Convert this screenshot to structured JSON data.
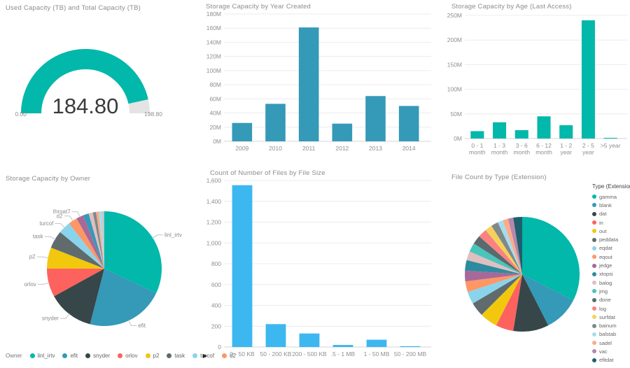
{
  "glyphs": {
    "legend_overflow_arrow": "▶"
  },
  "chart_data": [
    {
      "id": "used-capacity-gauge",
      "type": "gauge",
      "title": "Used Capacity (TB) and Total Capacity (TB)",
      "value": 184.8,
      "min": 0,
      "max": 198.8,
      "value_label": "184.80",
      "min_label": "0.00",
      "max_label": "198.80",
      "fill_color": "#01B8AA",
      "track_color": "#E4E4E4"
    },
    {
      "id": "storage-by-year-created",
      "type": "bar",
      "title": "Storage Capacity by Year Created",
      "categories": [
        "2009",
        "2010",
        "2011",
        "2012",
        "2013",
        "2014"
      ],
      "values": [
        26,
        53,
        161,
        25,
        64,
        50
      ],
      "value_unit": "M",
      "ylim": [
        0,
        180
      ],
      "ytick_labels": [
        "0M",
        "20M",
        "40M",
        "60M",
        "80M",
        "100M",
        "120M",
        "140M",
        "160M",
        "180M"
      ],
      "bar_color": "#3599B8",
      "grid": true
    },
    {
      "id": "storage-by-age-last-access",
      "type": "bar",
      "title": "Storage Capacity by Age (Last Access)",
      "categories": [
        "0 - 1 month",
        "1 - 3 month",
        "3 - 6 month",
        "6 - 12 month",
        "1 - 2 year",
        "2 - 5 year",
        ">5 year"
      ],
      "xtick_lines": [
        [
          "0 - 1",
          "month"
        ],
        [
          "1 - 3",
          "month"
        ],
        [
          "3 - 6",
          "month"
        ],
        [
          "6 - 12",
          "month"
        ],
        [
          "1 - 2",
          "year"
        ],
        [
          "2 - 5",
          "year"
        ],
        [
          ">5 year"
        ]
      ],
      "values": [
        15,
        33,
        17,
        45,
        27,
        240,
        1
      ],
      "value_unit": "M",
      "ylim": [
        0,
        250
      ],
      "ytick_labels": [
        "0M",
        "50M",
        "100M",
        "150M",
        "200M",
        "250M"
      ],
      "bar_color": "#01B8AA",
      "grid": true
    },
    {
      "id": "storage-by-owner",
      "type": "pie",
      "title": "Storage Capacity by Owner",
      "legend_title": "Owner",
      "legend_position": "bottom",
      "show_labels": true,
      "slices": [
        {
          "label": "linl_irtv",
          "value": 32,
          "color": "#01B8AA",
          "in_legend": true
        },
        {
          "label": "efit",
          "value": 22,
          "color": "#3599B8",
          "in_legend": true
        },
        {
          "label": "snyder",
          "value": 13,
          "color": "#374649",
          "in_legend": true
        },
        {
          "label": "orlov",
          "value": 8,
          "color": "#FD625E",
          "in_legend": true
        },
        {
          "label": "p2",
          "value": 6,
          "color": "#F2C80F",
          "in_legend": true
        },
        {
          "label": "task",
          "value": 5,
          "color": "#5F6B6D",
          "in_legend": true
        },
        {
          "label": "turcof",
          "value": 3.5,
          "color": "#8AD4EB",
          "in_legend": true
        },
        {
          "label": "d2",
          "value": 2.5,
          "color": "#FE9666",
          "in_legend": true
        },
        {
          "label": "throat7",
          "value": 2,
          "color": "#A66999",
          "in_legend": false
        },
        {
          "label": "",
          "value": 1.6,
          "color": "#3599B8",
          "in_legend": false
        },
        {
          "label": "",
          "value": 1.2,
          "color": "#DFBFBF",
          "in_legend": false
        },
        {
          "label": "",
          "value": 0.9,
          "color": "#7F898A",
          "in_legend": false
        },
        {
          "label": "",
          "value": 0.8,
          "color": "#FDAB89",
          "in_legend": false
        },
        {
          "label": "",
          "value": 0.8,
          "color": "#A4DDEE",
          "in_legend": false
        },
        {
          "label": "",
          "value": 0.7,
          "color": "#C2C6C7",
          "in_legend": false
        }
      ]
    },
    {
      "id": "file-count-by-size",
      "type": "bar",
      "title": "Count of Number of Files by File Size",
      "categories": [
        "0 - 50 KB",
        "50 - 200 KB",
        "200 - 500 KB",
        ".5 - 1 MB",
        "1 - 50 MB",
        "50 - 200 MB"
      ],
      "values": [
        1555,
        220,
        130,
        20,
        70,
        8
      ],
      "ylim": [
        0,
        1600
      ],
      "ytick_labels": [
        "0",
        "200",
        "400",
        "600",
        "800",
        "1,000",
        "1,200",
        "1,400",
        "1,600"
      ],
      "bar_color": "#3DB7F0",
      "grid": true
    },
    {
      "id": "file-count-by-type-extension",
      "type": "pie",
      "title": "File Count by Type (Extension)",
      "legend_title": "Type (Extension)",
      "legend_position": "right",
      "show_labels": false,
      "slices": [
        {
          "label": "gamma",
          "value": 32.5,
          "color": "#01B8AA",
          "in_legend": true
        },
        {
          "label": "blank",
          "value": 10,
          "color": "#3599B8",
          "in_legend": true
        },
        {
          "label": "dat",
          "value": 10,
          "color": "#374649",
          "in_legend": true
        },
        {
          "label": "in",
          "value": 5,
          "color": "#FD625E",
          "in_legend": true
        },
        {
          "label": "out",
          "value": 5,
          "color": "#F2C80F",
          "in_legend": true
        },
        {
          "label": "peddata",
          "value": 4,
          "color": "#5F6B6D",
          "in_legend": true
        },
        {
          "label": "eqdat",
          "value": 3.5,
          "color": "#8AD4EB",
          "in_legend": true
        },
        {
          "label": "eqout",
          "value": 3,
          "color": "#FE9666",
          "in_legend": true
        },
        {
          "label": "jedge",
          "value": 3,
          "color": "#A66999",
          "in_legend": true
        },
        {
          "label": "xtopsi",
          "value": 3,
          "color": "#2E8B9F",
          "in_legend": true
        },
        {
          "label": "balog",
          "value": 2.5,
          "color": "#DFBFBF",
          "in_legend": true
        },
        {
          "label": "jmg",
          "value": 2.5,
          "color": "#4AC5BB",
          "in_legend": true
        },
        {
          "label": "done",
          "value": 2.5,
          "color": "#5A6A6E",
          "in_legend": true
        },
        {
          "label": "log",
          "value": 2.5,
          "color": "#FB8281",
          "in_legend": true
        },
        {
          "label": "surfdat",
          "value": 2,
          "color": "#F4D25A",
          "in_legend": true
        },
        {
          "label": "bainum",
          "value": 2,
          "color": "#7F898A",
          "in_legend": true
        },
        {
          "label": "balstab",
          "value": 1.5,
          "color": "#A4DDEE",
          "in_legend": true
        },
        {
          "label": "sadel",
          "value": 1.5,
          "color": "#FDAB89",
          "in_legend": true
        },
        {
          "label": "vac",
          "value": 1.5,
          "color": "#B687AC",
          "in_legend": true
        },
        {
          "label": "efitdat",
          "value": 2.5,
          "color": "#1E5F6E",
          "in_legend": true
        }
      ]
    }
  ]
}
